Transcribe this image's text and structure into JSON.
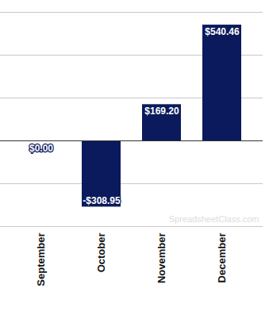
{
  "chart_data": {
    "type": "bar",
    "categories": [
      "September",
      "October",
      "November",
      "December"
    ],
    "values": [
      0,
      -308.95,
      169.2,
      540.46
    ],
    "value_labels": [
      "$0.00",
      "-$308.95",
      "$169.20",
      "$540.46"
    ],
    "color": "#0b1a5c",
    "ylim": [
      -400,
      600
    ],
    "yticks": [
      -400,
      -200,
      0,
      200,
      400,
      600
    ],
    "grid": true,
    "data_labels": true,
    "tick_labels": "x",
    "annotations": [
      "SpreadsheetClass.com"
    ]
  }
}
